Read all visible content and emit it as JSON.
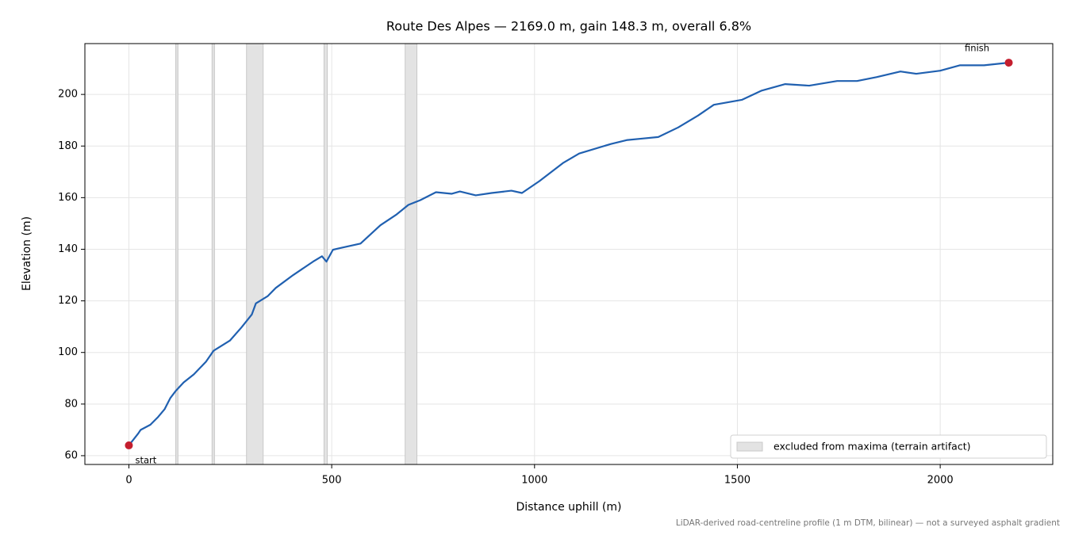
{
  "chart_data": {
    "type": "line",
    "title": "Route Des Alpes — 2169.0 m, gain 148.3 m, overall 6.8%",
    "x_label": "Distance uphill (m)",
    "y_label": "Elevation (m)",
    "footnote": "LiDAR-derived road-centreline profile (1 m DTM, bilinear) — not a surveyed asphalt gradient",
    "xlim": [
      -108.45,
      2277.45
    ],
    "ylim": [
      56.6,
      219.7
    ],
    "xticks": [
      0,
      500,
      1000,
      1500,
      2000
    ],
    "yticks": [
      60,
      80,
      100,
      120,
      140,
      160,
      180,
      200
    ],
    "grid": true,
    "legend": "lower right",
    "series": [
      {
        "name": null,
        "color": "#2060b0",
        "x": [
          0,
          23,
          29,
          53,
          72,
          88,
          102,
          115,
          135,
          160,
          190,
          209,
          249,
          278,
          303,
          313,
          342,
          362,
          405,
          454,
          476,
          487,
          503,
          519,
          571,
          620,
          660,
          689,
          718,
          757,
          796,
          816,
          855,
          894,
          943,
          969,
          1012,
          1070,
          1110,
          1188,
          1227,
          1266,
          1305,
          1354,
          1403,
          1442,
          1511,
          1560,
          1618,
          1677,
          1746,
          1795,
          1843,
          1902,
          1941,
          2000,
          2049,
          2108,
          2169
        ],
        "values": [
          64,
          68.6,
          70,
          72,
          75,
          78,
          82.3,
          85,
          88.4,
          91.5,
          96.4,
          100.7,
          104.6,
          109.8,
          114.7,
          119,
          121.8,
          125,
          130,
          135.2,
          137.3,
          135.2,
          139.8,
          140.4,
          142.2,
          149.3,
          153.5,
          157.2,
          159,
          162.1,
          161.5,
          162.4,
          160.9,
          161.8,
          162.7,
          161.8,
          166.4,
          173.4,
          177.1,
          180.8,
          182.3,
          182.9,
          183.5,
          187.2,
          191.8,
          196,
          197.9,
          201.5,
          204,
          203.4,
          205.2,
          205.2,
          206.7,
          208.9,
          208,
          209.2,
          211.3,
          211.3,
          212.3
        ]
      }
    ],
    "excluded": {
      "name": "excluded from maxima (terrain artifact)",
      "color": "#e3e3e3",
      "ranges": [
        [
          115.5,
          121
        ],
        [
          205,
          211
        ],
        [
          290,
          331
        ],
        [
          481,
          489
        ],
        [
          681,
          710
        ]
      ]
    },
    "endpoints": [
      {
        "label": "start",
        "x": 0,
        "y": 64
      },
      {
        "label": "finish",
        "x": 2169,
        "y": 212.3
      }
    ],
    "endpoint_color": "#c41e2e"
  }
}
